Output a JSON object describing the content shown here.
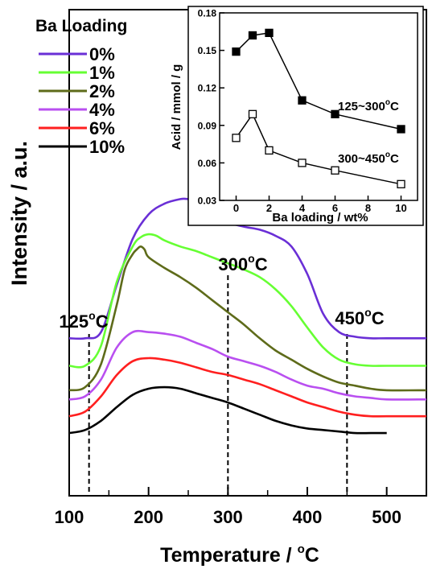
{
  "chart_data": [
    {
      "type": "line",
      "title": "",
      "xlabel": "Temperature / °C",
      "xlabel_main": "Temperature / ",
      "xlabel_sup": "o",
      "xlabel_tail": "C",
      "ylabel": "Intensity / a.u.",
      "xlim": [
        100,
        550
      ],
      "xticks": [
        100,
        200,
        300,
        400,
        500
      ],
      "yticks_shown": false,
      "legend": {
        "title": "Ba Loading",
        "placement": "top-left",
        "entries": [
          "0%",
          "1%",
          "2%",
          "4%",
          "6%",
          "10%"
        ]
      },
      "annotations": [
        {
          "x": 125,
          "label_main": "125",
          "label_sup": "o",
          "label_tail": "C"
        },
        {
          "x": 300,
          "label_main": "300",
          "label_sup": "o",
          "label_tail": "C"
        },
        {
          "x": 450,
          "label_main": "450",
          "label_sup": "o",
          "label_tail": "C"
        }
      ],
      "series_note_units": "intensity in arbitrary units (stacked offsets)",
      "series": [
        {
          "name": "0%",
          "color": "#6a2fd6",
          "x": [
            100,
            120,
            140,
            160,
            180,
            200,
            220,
            240,
            250,
            260,
            280,
            300,
            320,
            340,
            360,
            380,
            400,
            420,
            440,
            460,
            480,
            500,
            550
          ],
          "y": [
            1.03,
            1.03,
            1.07,
            1.38,
            1.68,
            1.84,
            1.91,
            1.94,
            1.94,
            1.93,
            1.87,
            1.79,
            1.76,
            1.74,
            1.7,
            1.63,
            1.45,
            1.19,
            1.07,
            1.04,
            1.03,
            1.03,
            1.03
          ]
        },
        {
          "name": "1%",
          "color": "#66ff33",
          "x": [
            100,
            120,
            140,
            160,
            180,
            190,
            200,
            210,
            220,
            240,
            260,
            280,
            300,
            320,
            340,
            360,
            380,
            400,
            420,
            440,
            460,
            480,
            500,
            550
          ],
          "y": [
            0.85,
            0.85,
            0.98,
            1.4,
            1.63,
            1.69,
            1.71,
            1.7,
            1.67,
            1.63,
            1.6,
            1.56,
            1.52,
            1.48,
            1.43,
            1.35,
            1.24,
            1.1,
            0.97,
            0.89,
            0.86,
            0.85,
            0.85,
            0.85
          ]
        },
        {
          "name": "2%",
          "color": "#5e6b1a",
          "x": [
            100,
            120,
            140,
            160,
            170,
            180,
            185,
            190,
            195,
            200,
            220,
            240,
            260,
            280,
            300,
            320,
            340,
            360,
            380,
            400,
            420,
            440,
            460,
            480,
            500,
            550
          ],
          "y": [
            0.69,
            0.71,
            0.86,
            1.25,
            1.48,
            1.58,
            1.61,
            1.63,
            1.61,
            1.56,
            1.49,
            1.43,
            1.36,
            1.28,
            1.2,
            1.12,
            1.03,
            0.95,
            0.89,
            0.83,
            0.78,
            0.74,
            0.72,
            0.7,
            0.69,
            0.69
          ]
        },
        {
          "name": "4%",
          "color": "#b94ff0",
          "x": [
            100,
            120,
            140,
            160,
            180,
            200,
            220,
            240,
            260,
            280,
            300,
            320,
            340,
            360,
            380,
            400,
            420,
            440,
            460,
            480,
            500,
            550
          ],
          "y": [
            0.63,
            0.65,
            0.76,
            0.97,
            1.07,
            1.07,
            1.06,
            1.04,
            1.0,
            0.96,
            0.91,
            0.88,
            0.85,
            0.81,
            0.76,
            0.72,
            0.7,
            0.67,
            0.65,
            0.64,
            0.63,
            0.63
          ]
        },
        {
          "name": "6%",
          "color": "#ff1f1f",
          "x": [
            100,
            120,
            140,
            160,
            180,
            200,
            220,
            240,
            260,
            280,
            300,
            320,
            340,
            360,
            380,
            400,
            420,
            440,
            460,
            480,
            500,
            550
          ],
          "y": [
            0.52,
            0.55,
            0.65,
            0.79,
            0.88,
            0.9,
            0.89,
            0.87,
            0.84,
            0.81,
            0.79,
            0.76,
            0.73,
            0.69,
            0.65,
            0.61,
            0.58,
            0.55,
            0.53,
            0.52,
            0.52,
            0.52
          ]
        },
        {
          "name": "10%",
          "color": "#000000",
          "x": [
            100,
            120,
            140,
            160,
            180,
            200,
            220,
            240,
            260,
            280,
            300,
            320,
            340,
            360,
            380,
            400,
            420,
            440,
            460,
            480,
            500
          ],
          "y": [
            0.41,
            0.43,
            0.49,
            0.58,
            0.66,
            0.7,
            0.71,
            0.7,
            0.67,
            0.64,
            0.61,
            0.57,
            0.53,
            0.49,
            0.46,
            0.44,
            0.43,
            0.42,
            0.41,
            0.41,
            0.41
          ]
        }
      ]
    },
    {
      "type": "scatter",
      "title": "",
      "xlabel": "Ba loading / wt%",
      "ylabel": "Acid / mmol / g",
      "xlim": [
        -1,
        11
      ],
      "ylim": [
        0.03,
        0.18
      ],
      "xticks": [
        0,
        2,
        4,
        6,
        8,
        10
      ],
      "yticks": [
        0.03,
        0.06,
        0.09,
        0.12,
        0.15,
        0.18
      ],
      "series": [
        {
          "name_main": "125~300",
          "name_sup": "o",
          "name_tail": "C",
          "marker": "filled-square",
          "x": [
            0,
            1,
            2,
            4,
            6,
            10
          ],
          "y": [
            0.149,
            0.162,
            0.164,
            0.11,
            0.099,
            0.087
          ]
        },
        {
          "name_main": "300~450",
          "name_sup": "o",
          "name_tail": "C",
          "marker": "open-square",
          "x": [
            0,
            1,
            2,
            4,
            6,
            10
          ],
          "y": [
            0.08,
            0.099,
            0.07,
            0.06,
            0.054,
            0.043
          ]
        }
      ]
    }
  ]
}
